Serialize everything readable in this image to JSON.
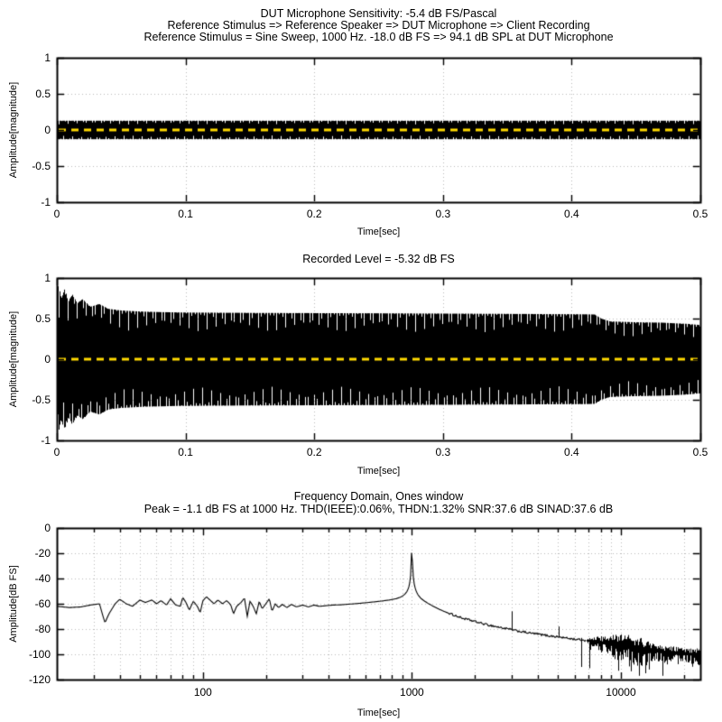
{
  "figure": {
    "background": "#ffffff",
    "line_color": "#000000",
    "grid_color": "#b9b9b9",
    "zero_line_color": "#ffd900"
  },
  "chart_data": [
    {
      "type": "waveform",
      "title_lines": [
        "DUT Microphone Sensitivity: -5.4 dB FS/Pascal",
        "Reference Stimulus => Reference Speaker => DUT Microphone => Client Recording",
        "Reference Stimulus = Sine Sweep, 1000 Hz. -18.0 dB FS => 94.1 dB SPL at DUT Microphone"
      ],
      "xlabel": "Time[sec]",
      "ylabel": "Amplitude[magnitude]",
      "xlim": [
        0,
        0.5
      ],
      "ylim": [
        -1,
        1
      ],
      "xticks": [
        {
          "v": 0,
          "label": "0"
        },
        {
          "v": 0.1,
          "label": "0.1"
        },
        {
          "v": 0.2,
          "label": "0.2"
        },
        {
          "v": 0.3,
          "label": "0.3"
        },
        {
          "v": 0.4,
          "label": "0.4"
        },
        {
          "v": 0.5,
          "label": "0.5"
        }
      ],
      "yticks": [
        {
          "v": 1,
          "label": "1"
        },
        {
          "v": 0.5,
          "label": "0.5"
        },
        {
          "v": 0,
          "label": "0"
        },
        {
          "v": -0.5,
          "label": "-0.5"
        },
        {
          "v": -1,
          "label": "-1"
        }
      ],
      "grid": "dotted",
      "signal": {
        "frequency_hz": 1000,
        "envelope": [
          [
            0,
            0.128
          ],
          [
            0.5,
            0.128
          ]
        ],
        "fill_color": "#000000"
      },
      "zero_line": {
        "value": 0,
        "color": "#ffd900",
        "dash": [
          8,
          6
        ],
        "width": 3
      }
    },
    {
      "type": "waveform",
      "title_lines": [
        "Recorded Level = -5.32 dB FS"
      ],
      "xlabel": "Time[sec]",
      "ylabel": "Amplitude[magnitude]",
      "xlim": [
        0,
        0.5
      ],
      "ylim": [
        -1,
        1
      ],
      "xticks": [
        {
          "v": 0,
          "label": "0"
        },
        {
          "v": 0.1,
          "label": "0.1"
        },
        {
          "v": 0.2,
          "label": "0.2"
        },
        {
          "v": 0.3,
          "label": "0.3"
        },
        {
          "v": 0.4,
          "label": "0.4"
        },
        {
          "v": 0.5,
          "label": "0.5"
        }
      ],
      "yticks": [
        {
          "v": 1,
          "label": "1"
        },
        {
          "v": 0.5,
          "label": "0.5"
        },
        {
          "v": 0,
          "label": "0"
        },
        {
          "v": -0.5,
          "label": "-0.5"
        },
        {
          "v": -1,
          "label": "-1"
        }
      ],
      "grid": "dotted",
      "signal": {
        "frequency_hz": 1000,
        "envelope": [
          [
            0,
            0.3
          ],
          [
            0.0012,
            0.9
          ],
          [
            0.0035,
            0.76
          ],
          [
            0.0063,
            0.86
          ],
          [
            0.009,
            0.71
          ],
          [
            0.012,
            0.8
          ],
          [
            0.016,
            0.69
          ],
          [
            0.02,
            0.74
          ],
          [
            0.026,
            0.645
          ],
          [
            0.033,
            0.68
          ],
          [
            0.04,
            0.62
          ],
          [
            0.05,
            0.6
          ],
          [
            0.068,
            0.585
          ],
          [
            0.096,
            0.575
          ],
          [
            0.15,
            0.57
          ],
          [
            0.25,
            0.565
          ],
          [
            0.35,
            0.558
          ],
          [
            0.41,
            0.553
          ],
          [
            0.418,
            0.55
          ],
          [
            0.423,
            0.5
          ],
          [
            0.43,
            0.465
          ],
          [
            0.45,
            0.455
          ],
          [
            0.47,
            0.45
          ],
          [
            0.49,
            0.435
          ],
          [
            0.5,
            0.42
          ]
        ],
        "fill_color": "#000000"
      },
      "zero_line": {
        "value": 0,
        "color": "#ffd900",
        "dash": [
          8,
          6
        ],
        "width": 3
      }
    },
    {
      "type": "spectrum",
      "title_lines": [
        "Frequency Domain, Ones window",
        "Peak = -1.1 dB FS at 1000 Hz. THD(IEEE):0.06%, THDN:1.32% SNR:37.6 dB SINAD:37.6 dB"
      ],
      "xlabel": "Time[sec]",
      "ylabel": "Amplitude[dB FS]",
      "xscale": "log",
      "xlim": [
        20,
        24000
      ],
      "ylim": [
        -120,
        0
      ],
      "xticks": [
        {
          "v": 100,
          "label": "100"
        },
        {
          "v": 1000,
          "label": "1000"
        },
        {
          "v": 10000,
          "label": "10000"
        }
      ],
      "yticks": [
        {
          "v": 0,
          "label": "0"
        },
        {
          "v": -20,
          "label": "-20"
        },
        {
          "v": -40,
          "label": "-40"
        },
        {
          "v": -60,
          "label": "-60"
        },
        {
          "v": -80,
          "label": "-80"
        },
        {
          "v": -100,
          "label": "-100"
        },
        {
          "v": -120,
          "label": "-120"
        }
      ],
      "grid": "dotted",
      "backbone": [
        [
          20,
          -62
        ],
        [
          23,
          -63
        ],
        [
          26,
          -62.5
        ],
        [
          29,
          -61
        ],
        [
          32,
          -60
        ],
        [
          33,
          -68
        ],
        [
          34,
          -75
        ],
        [
          35.5,
          -68
        ],
        [
          38,
          -60
        ],
        [
          40,
          -56.5
        ],
        [
          43,
          -60
        ],
        [
          46,
          -62
        ],
        [
          50,
          -57
        ],
        [
          53,
          -59
        ],
        [
          57,
          -57
        ],
        [
          60,
          -60
        ],
        [
          63,
          -57.5
        ],
        [
          67,
          -61
        ],
        [
          70,
          -56
        ],
        [
          74,
          -61
        ],
        [
          78,
          -62
        ],
        [
          80,
          -55
        ],
        [
          83,
          -59
        ],
        [
          86,
          -65
        ],
        [
          90,
          -58
        ],
        [
          94,
          -62
        ],
        [
          97,
          -67
        ],
        [
          100,
          -57.5
        ],
        [
          104,
          -54.5
        ],
        [
          108,
          -57
        ],
        [
          113,
          -60
        ],
        [
          118,
          -57
        ],
        [
          124,
          -60
        ],
        [
          130,
          -57.5
        ],
        [
          136,
          -61
        ],
        [
          140,
          -68
        ],
        [
          145,
          -62
        ],
        [
          152,
          -59
        ],
        [
          158,
          -55.5
        ],
        [
          163,
          -70
        ],
        [
          168,
          -58
        ],
        [
          174,
          -62
        ],
        [
          180,
          -68
        ],
        [
          186,
          -58
        ],
        [
          192,
          -64
        ],
        [
          200,
          -60
        ],
        [
          208,
          -56
        ],
        [
          214,
          -66
        ],
        [
          222,
          -60
        ],
        [
          230,
          -63
        ],
        [
          240,
          -60.5
        ],
        [
          252,
          -63
        ],
        [
          265,
          -60.5
        ],
        [
          280,
          -62.5
        ],
        [
          300,
          -61
        ],
        [
          320,
          -62.5
        ],
        [
          340,
          -61
        ],
        [
          360,
          -62
        ],
        [
          390,
          -61.5
        ],
        [
          420,
          -61
        ],
        [
          460,
          -60.8
        ],
        [
          500,
          -60.3
        ],
        [
          550,
          -59.8
        ],
        [
          600,
          -59.2
        ],
        [
          660,
          -58.5
        ],
        [
          720,
          -57.8
        ],
        [
          780,
          -57
        ],
        [
          840,
          -56
        ],
        [
          890,
          -54.5
        ],
        [
          925,
          -52.5
        ],
        [
          950,
          -50
        ],
        [
          968,
          -46.5
        ],
        [
          980,
          -42
        ],
        [
          988,
          -36
        ],
        [
          994,
          -27
        ],
        [
          997,
          -16
        ],
        [
          1000,
          -1.1
        ],
        [
          1003,
          -16
        ],
        [
          1006,
          -27
        ],
        [
          1012,
          -36
        ],
        [
          1020,
          -42
        ],
        [
          1032,
          -46.5
        ],
        [
          1048,
          -50
        ],
        [
          1070,
          -53
        ],
        [
          1100,
          -55.5
        ],
        [
          1140,
          -57.5
        ],
        [
          1190,
          -59.5
        ],
        [
          1250,
          -61.5
        ],
        [
          1320,
          -63.5
        ],
        [
          1400,
          -65.5
        ],
        [
          1500,
          -67.5
        ],
        [
          1620,
          -69.5
        ],
        [
          1750,
          -71.5
        ],
        [
          1900,
          -73
        ],
        [
          2100,
          -75
        ],
        [
          2350,
          -77
        ],
        [
          2600,
          -78.5
        ],
        [
          2900,
          -80
        ],
        [
          3200,
          -81.5
        ],
        [
          3600,
          -83
        ],
        [
          4000,
          -84
        ],
        [
          4500,
          -85.3
        ],
        [
          5000,
          -86.2
        ],
        [
          5500,
          -87.2
        ],
        [
          6000,
          -88
        ],
        [
          6800,
          -89
        ]
      ],
      "spikes": [
        [
          3000,
          -66
        ],
        [
          5050,
          -78
        ]
      ],
      "peak": {
        "freq_hz": 1000,
        "db_fs": -1.1
      },
      "noise": {
        "from_hz": 6800,
        "to_hz": 24000,
        "base": [
          [
            6800,
            -89
          ],
          [
            8000,
            -90.5
          ],
          [
            9000,
            -91.5
          ],
          [
            10000,
            -93
          ],
          [
            11000,
            -94
          ],
          [
            12000,
            -95
          ],
          [
            13000,
            -96
          ],
          [
            14000,
            -97
          ],
          [
            15000,
            -97.5
          ],
          [
            16000,
            -98
          ],
          [
            18000,
            -99
          ],
          [
            20000,
            -99.5
          ],
          [
            22000,
            -100
          ],
          [
            24000,
            -100
          ]
        ],
        "up_jitter_db": 7,
        "down_jitter_db": 11,
        "dense_from_hz": 8500,
        "dense_to_hz": 14500,
        "dense_factor": 1.9,
        "down_spikes": [
          [
            6450,
            -110
          ],
          [
            7050,
            -111
          ],
          [
            9700,
            -113
          ],
          [
            12200,
            -117
          ],
          [
            13100,
            -115
          ],
          [
            13600,
            -112
          ],
          [
            15800,
            -117
          ],
          [
            16600,
            -108
          ]
        ]
      }
    }
  ]
}
